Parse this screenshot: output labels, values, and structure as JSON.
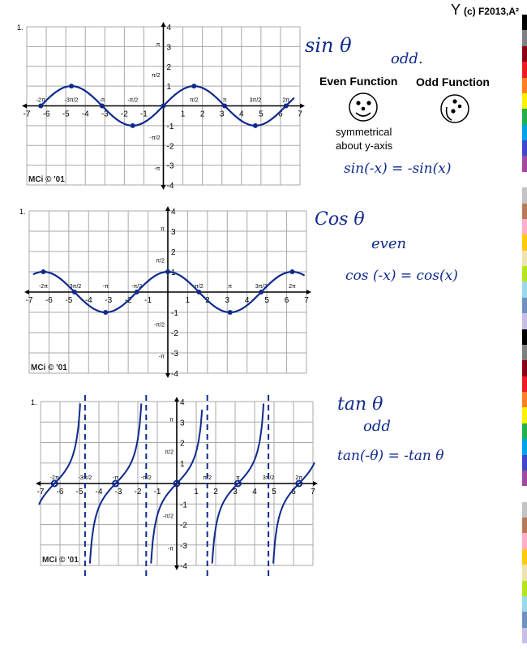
{
  "header": {
    "mark": "Y",
    "copyright": "(c) F2013,A²"
  },
  "colors": {
    "ink": "#0f2a8c",
    "grid": "#a9a9a9",
    "axis": "#000000"
  },
  "panels": [
    {
      "id": "sin",
      "corner_number": "1.",
      "watermark": "MCi © '01",
      "x_ticks": [
        "-7",
        "-6",
        "-5",
        "-4",
        "-3",
        "-2",
        "-1",
        "1",
        "2",
        "3",
        "4",
        "5",
        "6",
        "7"
      ],
      "y_ticks": [
        "4",
        "3",
        "2",
        "1",
        "-1",
        "-2",
        "-3",
        "-4"
      ],
      "pi_labels_x": [
        "-2π",
        "-3π/2",
        "-π",
        "-π/2",
        "π/2",
        "π",
        "3π/2",
        "2π"
      ],
      "pi_labels_y": [
        "π",
        "π/2",
        "-π/2",
        "-π"
      ],
      "notes": {
        "title": "sin θ",
        "parity": "odd.",
        "identity": "sin(-x) = -sin(x)"
      }
    },
    {
      "id": "cos",
      "corner_number": "1.",
      "watermark": "MCi © '01",
      "x_ticks": [
        "-7",
        "-6",
        "-5",
        "-4",
        "-3",
        "-2",
        "-1",
        "1",
        "2",
        "3",
        "4",
        "5",
        "6",
        "7"
      ],
      "y_ticks": [
        "4",
        "3",
        "2",
        "1",
        "-1",
        "-2",
        "-3",
        "-4"
      ],
      "pi_labels_x": [
        "-2π",
        "-3π/2",
        "-π",
        "-π/2",
        "π/2",
        "π",
        "3π/2",
        "2π"
      ],
      "pi_labels_y": [
        "π",
        "π/2",
        "-π/2",
        "-π"
      ],
      "notes": {
        "title": "Cos θ",
        "parity": "even",
        "identity": "cos (-x) = cos(x)"
      }
    },
    {
      "id": "tan",
      "corner_number": "1.",
      "watermark": "MCi © '01",
      "x_ticks": [
        "-7",
        "-6",
        "-5",
        "-4",
        "-3",
        "-2",
        "-1",
        "1",
        "2",
        "3",
        "4",
        "5",
        "6",
        "7"
      ],
      "y_ticks": [
        "4",
        "3",
        "2",
        "1",
        "-1",
        "-2",
        "-3",
        "-4"
      ],
      "pi_labels_x": [
        "-2π",
        "-3π/2",
        "-π",
        "-π/2",
        "π/2",
        "π",
        "3π/2",
        "2π"
      ],
      "pi_labels_y": [
        "π",
        "π/2",
        "-π/2",
        "-π"
      ],
      "notes": {
        "title": "tan θ",
        "parity": "odd",
        "identity": "tan(-θ) = -tan θ"
      }
    }
  ],
  "legend": {
    "even_label": "Even Function",
    "odd_label": "Odd Function",
    "symmetric_note_line1": "symmetrical",
    "symmetric_note_line2": "about y-axis"
  },
  "palette": [
    "#000000",
    "#7f7f7f",
    "#880015",
    "#ed1c24",
    "#ff7f27",
    "#fff200",
    "#22b14c",
    "#00a2e8",
    "#3f48cc",
    "#a349a4",
    "#ffffff",
    "#c3c3c3",
    "#b97a57",
    "#ffaec9",
    "#ffc90e",
    "#efe4b0",
    "#b5e61d",
    "#99d9ea",
    "#7092be",
    "#c8bfe7"
  ]
}
